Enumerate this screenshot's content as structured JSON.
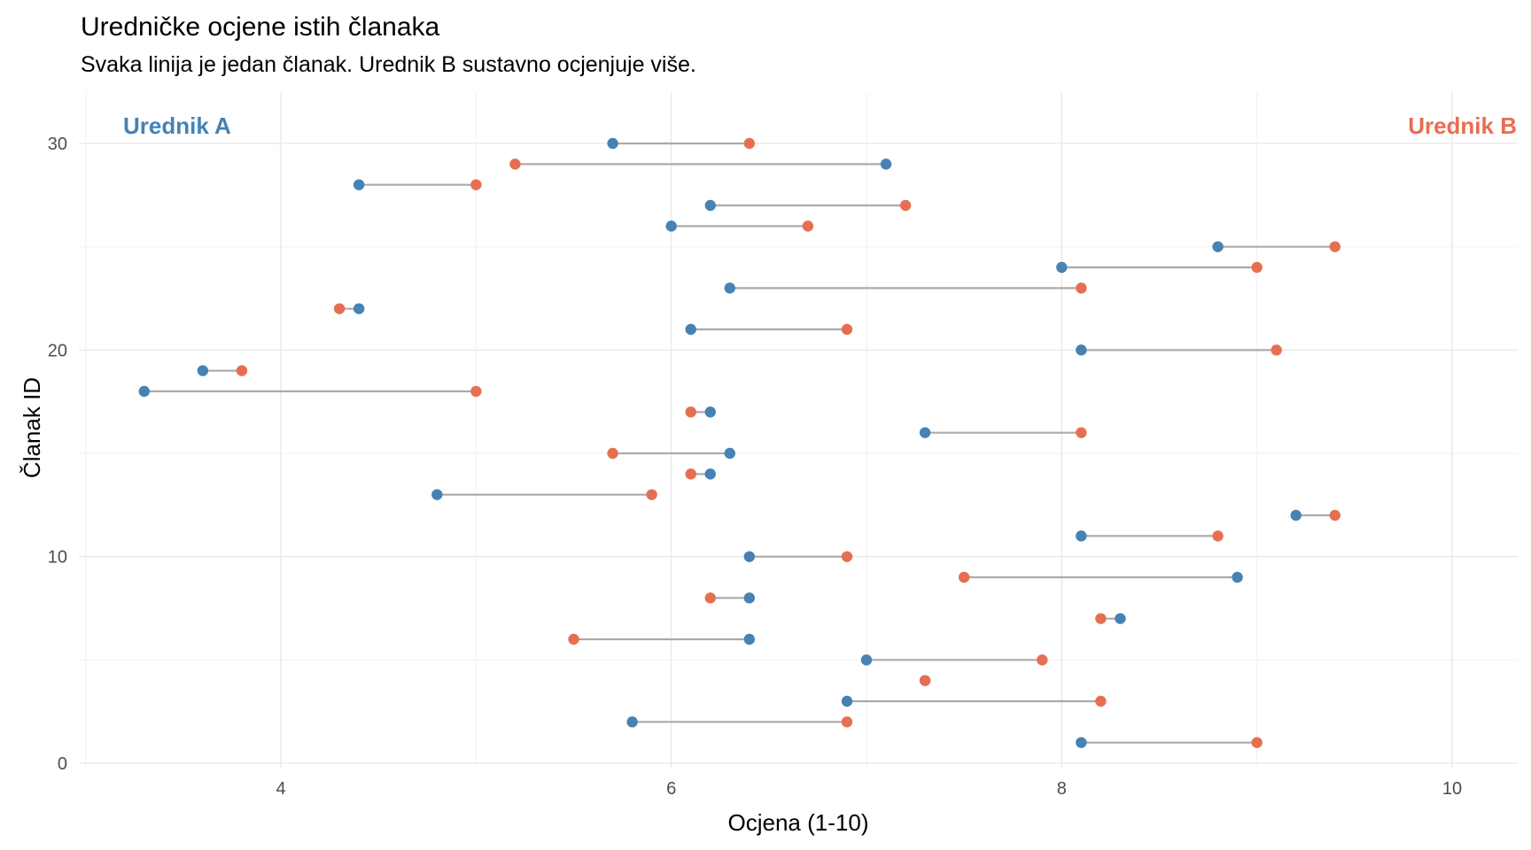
{
  "chart_data": {
    "type": "dumbbell",
    "title": "Uredničke ocjene istih članaka",
    "subtitle": "Svaka linija je jedan članak. Urednik B sustavno ocjenjuje više.",
    "xlabel": "Ocjena (1-10)",
    "ylabel": "Članak ID",
    "xlim": [
      2.95,
      10.3
    ],
    "ylim": [
      -0.8,
      32
    ],
    "x_ticks": [
      4,
      6,
      8,
      10
    ],
    "x_tick_labels": [
      "4",
      "6",
      "8",
      "10"
    ],
    "x_minor_ticks": [
      3,
      5,
      7,
      9
    ],
    "y_ticks": [
      0,
      10,
      20,
      30
    ],
    "y_tick_labels": [
      "0",
      "10",
      "20",
      "30"
    ],
    "y_minor_ticks": [
      5,
      15,
      25
    ],
    "grid": true,
    "annotations": [
      {
        "text": "Urednik A",
        "series": "Urednik A",
        "position": "top-left"
      },
      {
        "text": "Urednik B",
        "series": "Urednik B",
        "position": "top-right"
      }
    ],
    "series": [
      {
        "name": "Urednik A",
        "color": "#4682B4"
      },
      {
        "name": "Urednik B",
        "color": "#E76F51"
      }
    ],
    "segment_color": "#AAAAAA",
    "points": [
      {
        "id": 1,
        "a": 8.1,
        "b": 9.0
      },
      {
        "id": 2,
        "a": 5.8,
        "b": 6.9
      },
      {
        "id": 3,
        "a": 6.9,
        "b": 8.2
      },
      {
        "id": 4,
        "a": 7.3,
        "b": 7.3
      },
      {
        "id": 5,
        "a": 7.0,
        "b": 7.9
      },
      {
        "id": 6,
        "a": 6.4,
        "b": 5.5
      },
      {
        "id": 7,
        "a": 8.3,
        "b": 8.2
      },
      {
        "id": 8,
        "a": 6.4,
        "b": 6.2
      },
      {
        "id": 9,
        "a": 8.9,
        "b": 7.5
      },
      {
        "id": 10,
        "a": 6.4,
        "b": 6.9
      },
      {
        "id": 11,
        "a": 8.1,
        "b": 8.8
      },
      {
        "id": 12,
        "a": 9.2,
        "b": 9.4
      },
      {
        "id": 13,
        "a": 4.8,
        "b": 5.9
      },
      {
        "id": 14,
        "a": 6.2,
        "b": 6.1
      },
      {
        "id": 15,
        "a": 6.3,
        "b": 5.7
      },
      {
        "id": 16,
        "a": 7.3,
        "b": 8.1
      },
      {
        "id": 17,
        "a": 6.2,
        "b": 6.1
      },
      {
        "id": 18,
        "a": 3.3,
        "b": 5.0
      },
      {
        "id": 19,
        "a": 3.6,
        "b": 3.8
      },
      {
        "id": 20,
        "a": 8.1,
        "b": 9.1
      },
      {
        "id": 21,
        "a": 6.1,
        "b": 6.9
      },
      {
        "id": 22,
        "a": 4.4,
        "b": 4.3
      },
      {
        "id": 23,
        "a": 6.3,
        "b": 8.1
      },
      {
        "id": 24,
        "a": 8.0,
        "b": 9.0
      },
      {
        "id": 25,
        "a": 8.8,
        "b": 9.4
      },
      {
        "id": 26,
        "a": 6.0,
        "b": 6.7
      },
      {
        "id": 27,
        "a": 6.2,
        "b": 7.2
      },
      {
        "id": 28,
        "a": 4.4,
        "b": 5.0
      },
      {
        "id": 29,
        "a": 7.1,
        "b": 5.2
      },
      {
        "id": 30,
        "a": 5.7,
        "b": 6.4
      }
    ]
  }
}
